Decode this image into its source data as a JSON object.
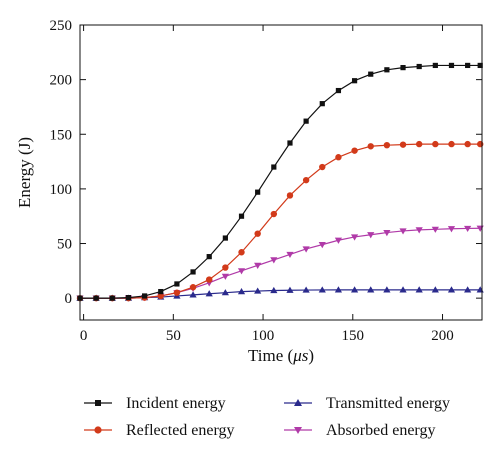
{
  "chart_data": {
    "type": "line",
    "xlabel": "Time (",
    "xlabel_unit": "μs",
    "xlabel_close": ")",
    "ylabel": "Energy (J)",
    "xlim": [
      -2,
      222
    ],
    "ylim": [
      -20,
      250
    ],
    "xticks": [
      0,
      50,
      100,
      150,
      200
    ],
    "yticks": [
      0,
      50,
      100,
      150,
      200,
      250
    ],
    "grid": false,
    "legend_position": "bottom",
    "x": [
      -2,
      7,
      16,
      25,
      34,
      43,
      52,
      61,
      70,
      79,
      88,
      97,
      106,
      115,
      124,
      133,
      142,
      151,
      160,
      169,
      178,
      187,
      196,
      205,
      214,
      221
    ],
    "series": [
      {
        "name": "Incident energy",
        "color": "#111111",
        "marker": "square",
        "values": [
          0,
          0,
          0,
          0.5,
          2,
          6,
          13,
          24,
          38,
          55,
          75,
          97,
          120,
          142,
          162,
          178,
          190,
          199,
          205,
          209,
          211,
          212,
          213,
          213,
          213,
          213
        ]
      },
      {
        "name": "Reflected energy",
        "color": "#d23a1a",
        "marker": "circle",
        "values": [
          0,
          0,
          0,
          0,
          0.5,
          2,
          5,
          10,
          17,
          28,
          42,
          59,
          77,
          94,
          108,
          120,
          129,
          135,
          139,
          140,
          140.5,
          141,
          141,
          141,
          141,
          141
        ]
      },
      {
        "name": "Transmitted energy",
        "color": "#2a2a8c",
        "marker": "triangle-up",
        "values": [
          0,
          0,
          0,
          0,
          0.5,
          1,
          2,
          3,
          4,
          5,
          6,
          6.5,
          7,
          7.2,
          7.4,
          7.5,
          7.6,
          7.6,
          7.6,
          7.6,
          7.6,
          7.6,
          7.6,
          7.6,
          7.6,
          7.6
        ]
      },
      {
        "name": "Absorbed energy",
        "color": "#b03aa8",
        "marker": "triangle-down",
        "values": [
          0,
          0,
          0,
          0,
          0.5,
          2,
          5,
          9,
          14,
          20,
          25,
          30,
          35,
          40,
          45,
          49,
          53,
          56,
          58,
          60,
          61.5,
          62.5,
          63,
          63.5,
          63.8,
          64
        ]
      }
    ]
  }
}
